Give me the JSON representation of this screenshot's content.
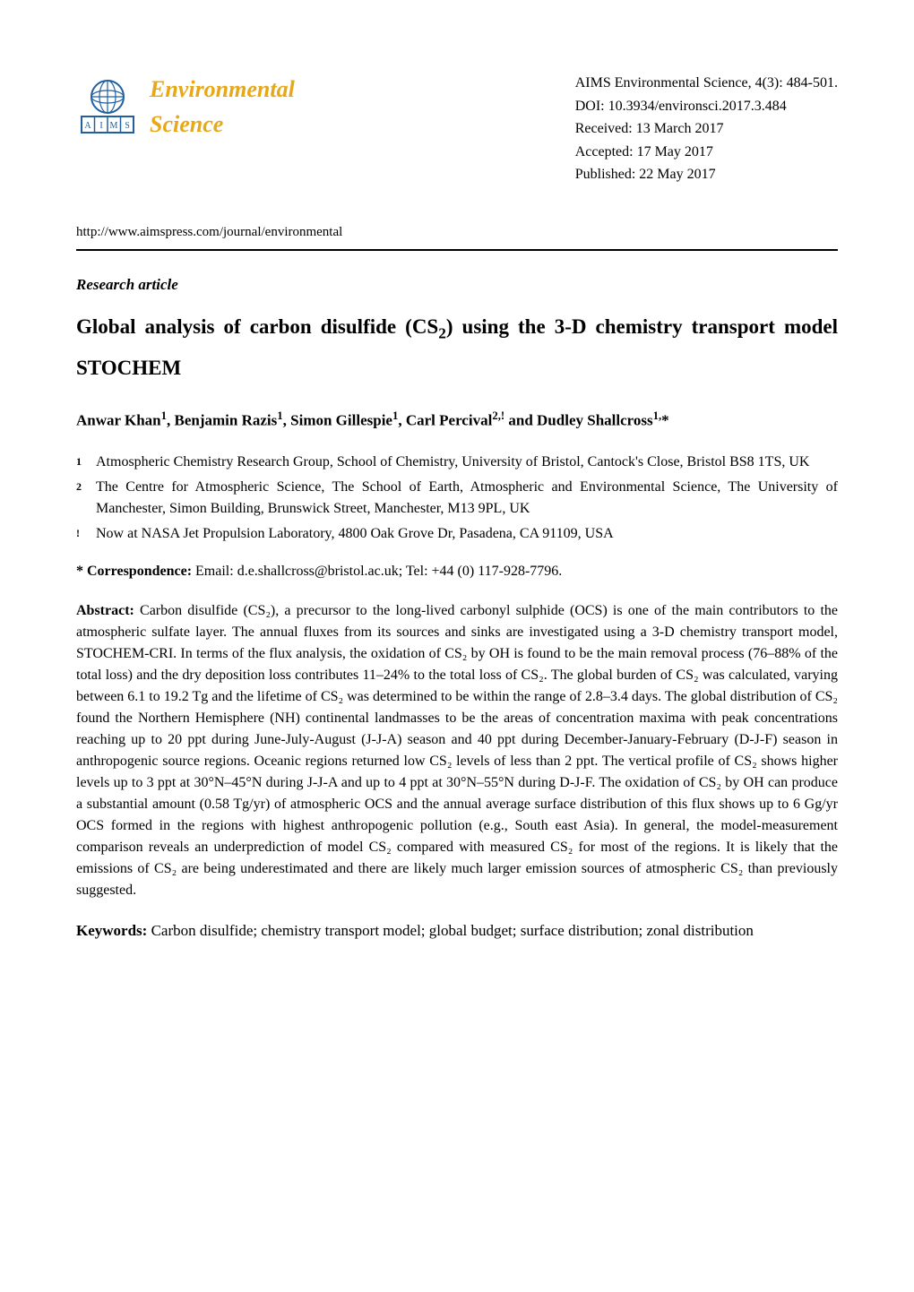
{
  "journal": {
    "logo_line1": "Environmental",
    "logo_line2": "Science",
    "logo_color": "#e6a817",
    "logo_letters": [
      "A",
      "I",
      "M",
      "S"
    ]
  },
  "meta": {
    "citation": "AIMS Environmental Science, 4(3): 484-501.",
    "doi": "DOI: 10.3934/environsci.2017.3.484",
    "received": "Received: 13 March 2017",
    "accepted": "Accepted: 17 May 2017",
    "published": "Published: 22 May 2017"
  },
  "url": "http://www.aimspress.com/journal/environmental",
  "article_type": "Research article",
  "title_part1": "Global analysis of carbon disulfide (CS",
  "title_sub": "2",
  "title_part2": ") using the 3-D chemistry transport model STOCHEM",
  "authors_html": "Anwar Khan<sup>1</sup>, Benjamin Razis<sup>1</sup>, Simon Gillespie<sup>1</sup>, Carl Percival<sup>2,!</sup> and Dudley Shallcross<sup>1,</sup>*",
  "affiliations": [
    {
      "marker": "1",
      "text": "Atmospheric Chemistry Research Group, School of Chemistry, University of Bristol, Cantock's Close, Bristol BS8 1TS, UK"
    },
    {
      "marker": "2",
      "text": "The Centre for Atmospheric Science, The School of Earth, Atmospheric and Environmental Science, The University of Manchester, Simon Building, Brunswick Street, Manchester, M13 9PL, UK"
    },
    {
      "marker": "!",
      "text": "Now at NASA Jet Propulsion Laboratory, 4800 Oak Grove Dr, Pasadena, CA 91109, USA"
    }
  ],
  "correspondence": {
    "label": "* Correspondence:",
    "text": " Email: d.e.shallcross@bristol.ac.uk; Tel: +44 (0) 117-928-7796."
  },
  "abstract": {
    "label": "Abstract:",
    "text": " Carbon disulfide (CS₂), a precursor to the long-lived carbonyl sulphide (OCS) is one of the main contributors to the atmospheric sulfate layer. The annual fluxes from its sources and sinks are investigated using a 3-D chemistry transport model, STOCHEM-CRI. In terms of the flux analysis, the oxidation of CS₂ by OH is found to be the main removal process (76–88% of the total loss) and the dry deposition loss contributes 11–24% to the total loss of CS₂. The global burden of CS₂ was calculated, varying between 6.1 to 19.2 Tg and the lifetime of CS₂ was determined to be within the range of 2.8–3.4 days. The global distribution of CS₂ found the Northern Hemisphere (NH) continental landmasses to be the areas of concentration maxima with peak concentrations reaching up to 20 ppt during June-July-August (J-J-A) season and 40 ppt during December-January-February (D-J-F) season in anthropogenic source regions. Oceanic regions returned low CS₂ levels of less than 2 ppt. The vertical profile of CS₂ shows higher levels up to 3 ppt at 30°N–45°N during J-J-A and up to 4 ppt at 30°N–55°N during D-J-F. The oxidation of CS₂ by OH can produce a substantial amount (0.58 Tg/yr) of atmospheric OCS and the annual average surface distribution of this flux shows up to 6 Gg/yr OCS formed in the regions with highest anthropogenic pollution (e.g., South east Asia). In general, the model-measurement comparison reveals an underprediction of model CS₂ compared with measured CS₂ for most of the regions. It is likely that the emissions of CS₂ are being underestimated and there are likely much larger emission sources of atmospheric CS₂ than previously suggested."
  },
  "keywords": {
    "label": "Keywords:",
    "text": " Carbon disulfide; chemistry transport model; global budget; surface distribution; zonal distribution"
  }
}
